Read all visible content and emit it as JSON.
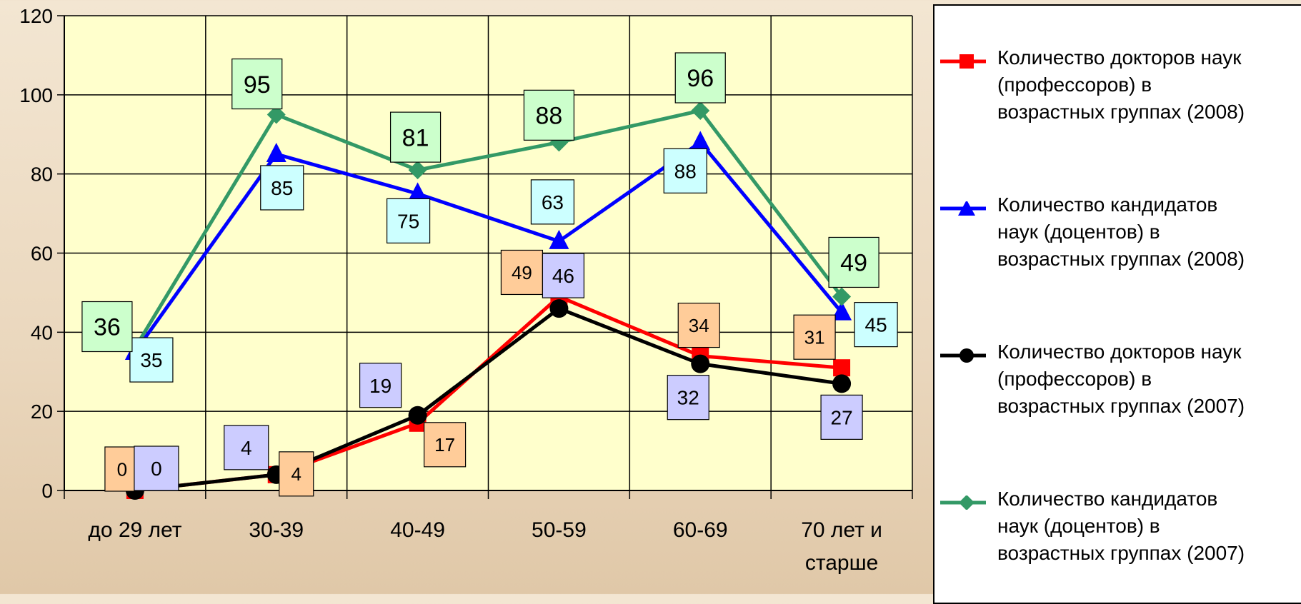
{
  "chart_data": {
    "type": "line",
    "title": "",
    "xlabel": "",
    "ylabel": "",
    "categories": [
      "до 29 лет",
      "30-39",
      "40-49",
      "50-59",
      "60-69",
      "70 лет и старше"
    ],
    "category_lines": [
      [
        "до 29 лет"
      ],
      [
        "30-39"
      ],
      [
        "40-49"
      ],
      [
        "50-59"
      ],
      [
        "60-69"
      ],
      [
        "70 лет и",
        "старше"
      ]
    ],
    "ylim": [
      0,
      120
    ],
    "yticks": [
      "0",
      "20",
      "40",
      "60",
      "80",
      "100",
      "120"
    ],
    "grid": true,
    "plot_background": "#ffffcc",
    "legend_position": "right",
    "series": [
      {
        "name": "Количество докторов наук (профессоров) в возрастных группах (2008)",
        "name_lines": [
          "Количество докторов наук",
          "(профессоров) в",
          "возрастных группах (2008)"
        ],
        "color": "#ff0000",
        "marker": "square",
        "label_bg": "#ffcc99",
        "values": [
          0,
          4,
          17,
          49,
          34,
          31
        ],
        "labels": [
          "0",
          "4",
          "17",
          "49",
          "34",
          "31"
        ]
      },
      {
        "name": "Количество кандидатов наук (доцентов) в возрастных группах (2008)",
        "name_lines": [
          "Количество кандидатов",
          "наук (доцентов) в",
          "возрастных группах (2008)"
        ],
        "color": "#0000ff",
        "marker": "triangle",
        "label_bg": "#ccffff",
        "values": [
          35,
          85,
          75,
          63,
          88,
          45
        ],
        "labels": [
          "35",
          "85",
          "75",
          "63",
          "88",
          "45"
        ]
      },
      {
        "name": "Количество докторов наук (профессоров) в возрастных группах (2007)",
        "name_lines": [
          "Количество докторов наук",
          "(профессоров) в",
          "возрастных группах (2007)"
        ],
        "color": "#000000",
        "marker": "circle",
        "label_bg": "#ccccff",
        "values": [
          0,
          4,
          19,
          46,
          32,
          27
        ],
        "labels": [
          "0",
          "4",
          "19",
          "46",
          "32",
          "27"
        ]
      },
      {
        "name": "Количество кандидатов наук (доцентов) в возрастных группах (2007)",
        "name_lines": [
          "Количество кандидатов",
          "наук (доцентов) в",
          "возрастных группах (2007)"
        ],
        "color": "#339966",
        "marker": "diamond",
        "label_bg": "#ccffcc",
        "values": [
          36,
          95,
          81,
          88,
          96,
          49
        ],
        "labels": [
          "36",
          "95",
          "81",
          "88",
          "96",
          "49"
        ]
      }
    ]
  }
}
